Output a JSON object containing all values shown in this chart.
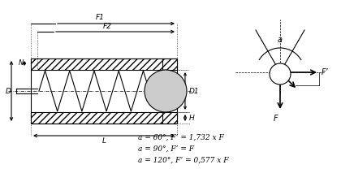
{
  "bg_color": "#ffffff",
  "line_color": "#000000",
  "hatch_color": "#555555",
  "title": "",
  "formulas": [
    "a = 60°, F’ = 1,732 x F",
    "a = 90°, F’ = F",
    "a = 120°, F’ = 0,577 x F"
  ],
  "labels": {
    "F1": "F1",
    "F2": "F2",
    "D": "D",
    "N": "N",
    "D1": "D1",
    "L": "L",
    "H": "H",
    "a": "a",
    "F": "F",
    "Fprime": "F’"
  }
}
